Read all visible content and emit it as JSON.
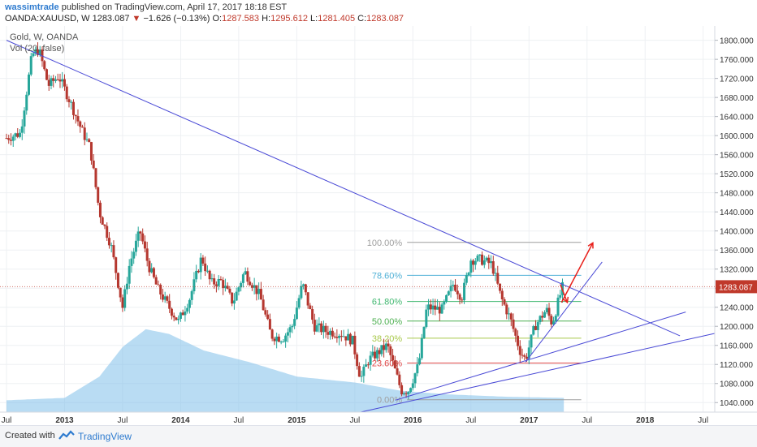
{
  "header": {
    "author": "wassimtrade",
    "published": " published on TradingView.com, April 17, 2017 18:18 EST",
    "symbol": "OANDA:XAUUSD, W",
    "last": "1283.087",
    "arrow": "▼",
    "change": "−1.626 (−0.13%)",
    "o_label": "O:",
    "o_val": "1287.583",
    "h_label": "H:",
    "h_val": "1295.612",
    "l_label": "L:",
    "l_val": "1281.405",
    "c_label": "C:",
    "c_val": "1283.087"
  },
  "legend": {
    "series": "Gold, W, OANDA",
    "volume": "Vol (20, false)"
  },
  "footer": {
    "created": "Created with",
    "brand": "TradingView"
  },
  "colors": {
    "up": "#26a69a",
    "down": "#b5372f",
    "trendline": "#4a4ad6",
    "arrow": "#e8201b",
    "volume": "#7fbfe9",
    "price_tag": "#c0392b"
  },
  "chart_data": {
    "type": "candlestick",
    "title": "Gold, W, OANDA",
    "ylim": [
      1020,
      1830
    ],
    "y_ticks": [
      "1040.000",
      "1080.000",
      "1120.000",
      "1160.000",
      "1200.000",
      "1240.000",
      "1280.000",
      "1320.000",
      "1360.000",
      "1400.000",
      "1440.000",
      "1480.000",
      "1520.000",
      "1560.000",
      "1600.000",
      "1640.000",
      "1680.000",
      "1720.000",
      "1760.000",
      "1800.000"
    ],
    "y_tick_values": [
      1040,
      1080,
      1120,
      1160,
      1200,
      1240,
      1280,
      1320,
      1360,
      1400,
      1440,
      1480,
      1520,
      1560,
      1600,
      1640,
      1680,
      1720,
      1760,
      1800
    ],
    "x_ticks": [
      {
        "label": "Jul",
        "t": 2012.5
      },
      {
        "label": "2013",
        "t": 2013.0
      },
      {
        "label": "Jul",
        "t": 2013.5
      },
      {
        "label": "2014",
        "t": 2014.0
      },
      {
        "label": "Jul",
        "t": 2014.5
      },
      {
        "label": "2015",
        "t": 2015.0
      },
      {
        "label": "Jul",
        "t": 2015.5
      },
      {
        "label": "2016",
        "t": 2016.0
      },
      {
        "label": "Jul",
        "t": 2016.5
      },
      {
        "label": "2017",
        "t": 2017.0
      },
      {
        "label": "Jul",
        "t": 2017.5
      },
      {
        "label": "2018",
        "t": 2018.0
      },
      {
        "label": "Jul",
        "t": 2018.5
      }
    ],
    "x_range": [
      2012.5,
      2018.6
    ],
    "current_price": 1283.087,
    "current_price_label": "1283.087",
    "price_anchors": [
      [
        2012.5,
        1595
      ],
      [
        2012.62,
        1605
      ],
      [
        2012.72,
        1770
      ],
      [
        2012.78,
        1780
      ],
      [
        2012.86,
        1705
      ],
      [
        2012.95,
        1725
      ],
      [
        2013.05,
        1670
      ],
      [
        2013.15,
        1610
      ],
      [
        2013.22,
        1575
      ],
      [
        2013.3,
        1440
      ],
      [
        2013.4,
        1370
      ],
      [
        2013.5,
        1240
      ],
      [
        2013.56,
        1330
      ],
      [
        2013.65,
        1400
      ],
      [
        2013.72,
        1330
      ],
      [
        2013.8,
        1280
      ],
      [
        2013.9,
        1240
      ],
      [
        2013.98,
        1210
      ],
      [
        2014.08,
        1260
      ],
      [
        2014.18,
        1345
      ],
      [
        2014.26,
        1290
      ],
      [
        2014.35,
        1295
      ],
      [
        2014.45,
        1250
      ],
      [
        2014.55,
        1315
      ],
      [
        2014.68,
        1265
      ],
      [
        2014.78,
        1180
      ],
      [
        2014.88,
        1175
      ],
      [
        2014.96,
        1200
      ],
      [
        2015.05,
        1290
      ],
      [
        2015.15,
        1200
      ],
      [
        2015.25,
        1190
      ],
      [
        2015.38,
        1185
      ],
      [
        2015.48,
        1170
      ],
      [
        2015.55,
        1090
      ],
      [
        2015.62,
        1130
      ],
      [
        2015.78,
        1160
      ],
      [
        2015.9,
        1065
      ],
      [
        2015.96,
        1065
      ],
      [
        2016.05,
        1120
      ],
      [
        2016.12,
        1240
      ],
      [
        2016.25,
        1235
      ],
      [
        2016.35,
        1290
      ],
      [
        2016.42,
        1260
      ],
      [
        2016.5,
        1340
      ],
      [
        2016.58,
        1340
      ],
      [
        2016.68,
        1330
      ],
      [
        2016.76,
        1260
      ],
      [
        2016.84,
        1215
      ],
      [
        2016.92,
        1150
      ],
      [
        2016.97,
        1130
      ],
      [
        2017.05,
        1200
      ],
      [
        2017.15,
        1235
      ],
      [
        2017.2,
        1205
      ],
      [
        2017.25,
        1250
      ],
      [
        2017.29,
        1283
      ]
    ],
    "volume_profile": [
      [
        2012.5,
        0.1
      ],
      [
        2013.0,
        0.12
      ],
      [
        2013.3,
        0.3
      ],
      [
        2013.5,
        0.55
      ],
      [
        2013.7,
        0.7
      ],
      [
        2013.9,
        0.66
      ],
      [
        2014.2,
        0.52
      ],
      [
        2014.6,
        0.42
      ],
      [
        2015.0,
        0.3
      ],
      [
        2015.5,
        0.25
      ],
      [
        2015.9,
        0.18
      ],
      [
        2016.3,
        0.15
      ],
      [
        2016.8,
        0.13
      ],
      [
        2017.3,
        0.12
      ]
    ],
    "fibonacci": {
      "t_start": 2015.95,
      "t_end": 2017.45,
      "levels": [
        {
          "label": "100.00%",
          "value": 1376,
          "color": "#9e9e9e"
        },
        {
          "label": "78.60%",
          "value": 1307,
          "color": "#4fb0d6"
        },
        {
          "label": "61.80%",
          "value": 1252,
          "color": "#3fb76f"
        },
        {
          "label": "50.00%",
          "value": 1211,
          "color": "#4caf50"
        },
        {
          "label": "38.20%",
          "value": 1175,
          "color": "#a8c84a"
        },
        {
          "label": "23.60%",
          "value": 1123,
          "color": "#e04848"
        },
        {
          "label": "0.00%",
          "value": 1046,
          "color": "#9e9e9e"
        }
      ]
    },
    "trendlines": [
      {
        "t1": 2012.5,
        "p1": 1800,
        "t2": 2018.3,
        "p2": 1180
      },
      {
        "t1": 2015.55,
        "p1": 1020,
        "t2": 2018.6,
        "p2": 1185
      },
      {
        "t1": 2015.85,
        "p1": 1045,
        "t2": 2018.35,
        "p2": 1230
      },
      {
        "t1": 2016.97,
        "p1": 1125,
        "t2": 2017.63,
        "p2": 1335
      }
    ],
    "arrows": [
      {
        "t1": 2017.28,
        "p1": 1250,
        "t2": 2017.55,
        "p2": 1375
      },
      {
        "t1": 2017.27,
        "p1": 1288,
        "t2": 2017.33,
        "p2": 1250
      }
    ]
  }
}
